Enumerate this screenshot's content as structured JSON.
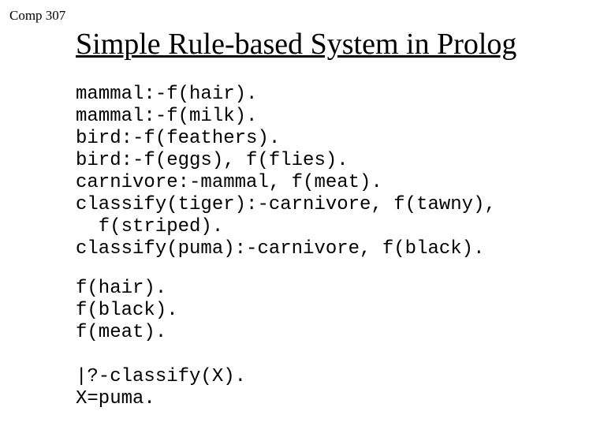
{
  "course_label": "Comp 307",
  "title": "Simple Rule-based System in Prolog",
  "code_block1": "mammal:-f(hair).\nmammal:-f(milk).\nbird:-f(feathers).\nbird:-f(eggs), f(flies).\ncarnivore:-mammal, f(meat).\nclassify(tiger):-carnivore, f(tawny),\n  f(striped).\nclassify(puma):-carnivore, f(black).",
  "code_block2": "f(hair).\nf(black).\nf(meat).",
  "code_block3": "|?-classify(X).\nX=puma."
}
